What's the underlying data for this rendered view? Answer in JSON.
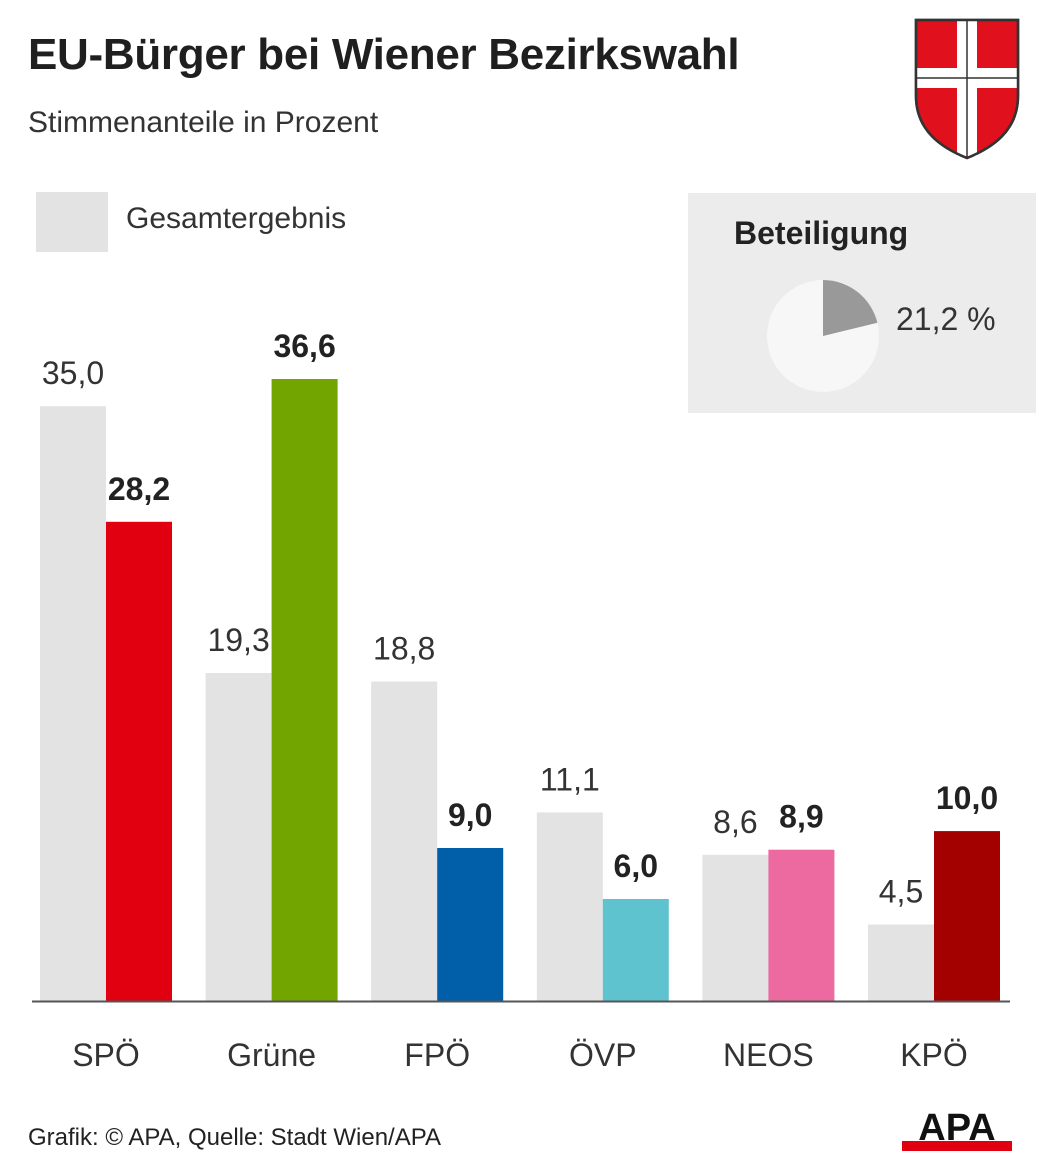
{
  "header": {
    "title": "EU-Bürger bei Wiener Bezirkswahl",
    "subtitle": "Stimmenanteile in Prozent"
  },
  "legend": {
    "overall_label": "Gesamtergebnis"
  },
  "turnout": {
    "title": "Beteiligung",
    "value": 21.2,
    "label": "21,2 %"
  },
  "footer": {
    "source": "Grafik: © APA, Quelle: Stadt Wien/APA",
    "logo_text": "APA"
  },
  "colors": {
    "overall": "#e3e3e3",
    "axis": "#555555",
    "pie_fill": "#999999",
    "pie_bg": "#f7f7f7",
    "crest_red": "#e0101c"
  },
  "chart_data": {
    "type": "bar",
    "categories": [
      "SPÖ",
      "Grüne",
      "FPÖ",
      "ÖVP",
      "NEOS",
      "KPÖ"
    ],
    "series": [
      {
        "name": "Gesamtergebnis",
        "values": [
          35.0,
          19.3,
          18.8,
          11.1,
          8.6,
          4.5
        ],
        "labels": [
          "35,0",
          "19,3",
          "18,8",
          "11,1",
          "8,6",
          "4,5"
        ],
        "color": "#e3e3e3"
      },
      {
        "values": [
          28.2,
          36.6,
          9.0,
          6.0,
          8.9,
          10.0
        ],
        "labels": [
          "28,2",
          "36,6",
          "9,0",
          "6,0",
          "8,9",
          "10,0"
        ],
        "colors": [
          "#e0000f",
          "#73a500",
          "#005fa8",
          "#5fc3cf",
          "#ec6aa0",
          "#a30000"
        ]
      }
    ],
    "title": "EU-Bürger bei Wiener Bezirkswahl",
    "ylim": [
      0,
      36.6
    ],
    "grid": false,
    "legend": "top-left"
  }
}
